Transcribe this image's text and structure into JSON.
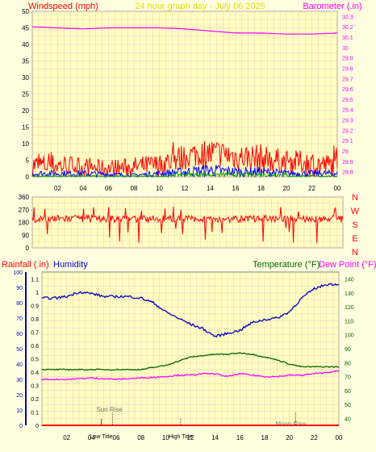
{
  "title": "24 hour graph day - July 06 2025",
  "colors": {
    "background": "#ffffe0",
    "grid": "#f0c8c8",
    "wind": "#ff0000",
    "wind_avg": "#0000ff",
    "wind_green": "#00a000",
    "barometer": "#ff00ff",
    "direction": "#ff0000",
    "humidity": "#0000cc",
    "temperature": "#006400",
    "dewpoint": "#ff00ff",
    "rainfall": "#ff0000",
    "title_yellow": "#e0e000",
    "marker": "#404040"
  },
  "chart_data": [
    {
      "type": "line",
      "id": "wind-barometer",
      "left_axis_title": "Windspeed (mph)",
      "right_axis_title": "Barometer (.in)",
      "x_ticks": [
        "02",
        "04",
        "06",
        "08",
        "10",
        "12",
        "14",
        "16",
        "18",
        "20",
        "22",
        "00"
      ],
      "y_left_ticks": [
        "0",
        "5",
        "10",
        "15",
        "20",
        "25",
        "30",
        "35",
        "40",
        "45",
        "50"
      ],
      "y_left_range": [
        0,
        50
      ],
      "y_right_ticks": [
        "28.8",
        "28.9",
        "29",
        "29.1",
        "29.2",
        "29.3",
        "29.4",
        "29.5",
        "29.6",
        "29.7",
        "29.8",
        "29.9",
        "30",
        "30.1",
        "30.2",
        "30.3"
      ],
      "y_right_range": [
        28.75,
        30.35
      ],
      "series": [
        {
          "key": "gust",
          "hours": [
            0,
            2,
            4,
            6,
            8,
            10,
            11,
            12,
            13,
            14,
            15,
            16,
            17,
            18,
            19,
            20,
            21,
            22,
            23,
            24
          ],
          "low": [
            0,
            0,
            0,
            0,
            0,
            0,
            1,
            2,
            3,
            2,
            3,
            2,
            2,
            1,
            1,
            1,
            1,
            0,
            0,
            0
          ],
          "high": [
            7,
            7,
            6,
            5,
            6,
            7,
            9,
            10,
            11,
            12,
            11,
            10,
            10,
            10,
            9,
            8,
            8,
            8,
            7,
            7
          ]
        },
        {
          "key": "average",
          "hours": [
            0,
            4,
            8,
            10,
            12,
            14,
            16,
            18,
            20,
            22,
            24
          ],
          "low": [
            0,
            0,
            0,
            0,
            0,
            0,
            0,
            0,
            0,
            0,
            0
          ],
          "high": [
            2,
            2,
            1,
            2,
            3,
            4,
            3,
            3,
            2,
            2,
            2
          ]
        },
        {
          "key": "barometer",
          "hours": [
            0,
            2,
            4,
            6,
            8,
            10,
            12,
            14,
            16,
            18,
            20,
            22,
            24
          ],
          "values": [
            30.2,
            30.19,
            30.18,
            30.19,
            30.19,
            30.19,
            30.18,
            30.16,
            30.14,
            30.14,
            30.13,
            30.13,
            30.14
          ]
        }
      ]
    },
    {
      "type": "line",
      "id": "wind-direction",
      "y_ticks": [
        "360",
        "270",
        "180",
        "90",
        "0"
      ],
      "y_range": [
        0,
        360
      ],
      "compass": [
        "N",
        "W",
        "S",
        "E",
        "N"
      ],
      "series": [
        {
          "key": "direction",
          "center": 205,
          "spread": 50
        }
      ]
    },
    {
      "type": "line",
      "id": "rain-humidity-temp",
      "rain_title": "Rainfall (.in)",
      "humidity_title": "Humidity",
      "temperature_title": "Temperature (°F)",
      "dewpoint_title": "Dew Point (°F)",
      "x_ticks": [
        "02",
        "04",
        "06",
        "08",
        "10",
        "12",
        "14",
        "16",
        "18",
        "20",
        "22",
        "00"
      ],
      "y_left_outer_ticks": [
        "100",
        "90",
        "80",
        "70",
        "60",
        "50",
        "40",
        "30",
        "20",
        "10",
        "0"
      ],
      "y_left_inner_ticks": [
        "1.1",
        "1",
        "0.9",
        "0.8",
        "0.7",
        "0.6",
        "0.5",
        "0.4",
        "0.3",
        "0.2",
        "0.1",
        "0"
      ],
      "y_right_ticks": [
        "140",
        "130",
        "120",
        "110",
        "100",
        "90",
        "80",
        "70",
        "60",
        "50",
        "40"
      ],
      "y_right_range": [
        35,
        145
      ],
      "markers": [
        {
          "label": "Sun Rise",
          "hour": 5.7
        },
        {
          "label": "Low Tide",
          "hour": 4.8
        },
        {
          "label": "High Tide",
          "hour": 11.2
        },
        {
          "label": "Moon Rise",
          "hour": 20.5
        }
      ],
      "series": [
        {
          "key": "humidity",
          "hours": [
            0,
            1,
            2,
            3,
            4,
            5,
            6,
            7,
            8,
            9,
            10,
            11,
            12,
            13,
            14,
            15,
            16,
            17,
            18,
            19,
            20,
            21,
            22,
            23,
            24
          ],
          "values": [
            83,
            83,
            84,
            87,
            86,
            84,
            84,
            84,
            83,
            80,
            74,
            70,
            66,
            63,
            58,
            60,
            62,
            67,
            69,
            70,
            74,
            83,
            89,
            92,
            92
          ]
        },
        {
          "key": "temperature",
          "hours": [
            0,
            2,
            4,
            6,
            8,
            10,
            11,
            12,
            13,
            14,
            15,
            16,
            17,
            18,
            19,
            20,
            21,
            22,
            23,
            24
          ],
          "values": [
            75,
            75,
            75,
            75,
            75,
            78,
            81,
            84,
            85,
            86,
            86,
            87,
            86,
            84,
            82,
            79,
            77,
            77,
            77,
            77
          ]
        },
        {
          "key": "dewpoint",
          "hours": [
            0,
            2,
            4,
            6,
            8,
            10,
            11,
            12,
            13,
            14,
            15,
            16,
            17,
            18,
            19,
            20,
            21,
            22,
            23,
            24
          ],
          "values": [
            68,
            68,
            69,
            68,
            69,
            70,
            71,
            71,
            72,
            72,
            70,
            72,
            71,
            70,
            70,
            71,
            71,
            72,
            73,
            74
          ]
        },
        {
          "key": "rainfall",
          "hours": [
            0,
            24
          ],
          "values": [
            0,
            0
          ]
        }
      ]
    }
  ]
}
